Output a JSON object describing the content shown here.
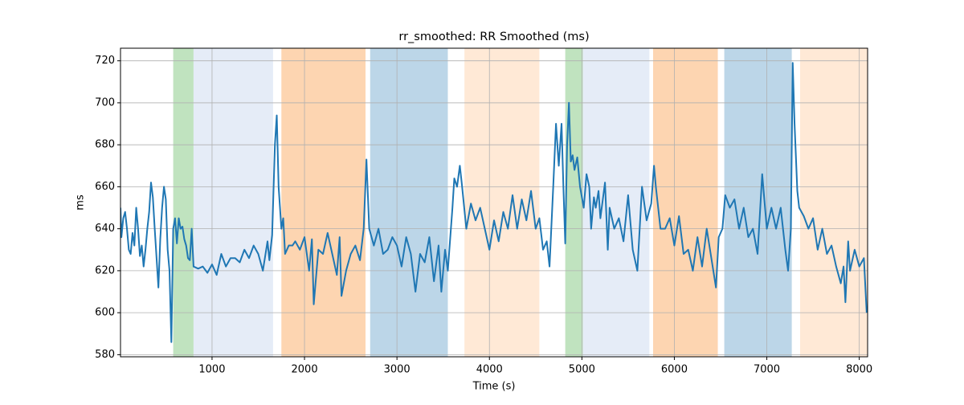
{
  "chart_data": {
    "type": "line",
    "title": "rr_smoothed: RR Smoothed (ms)",
    "x_label": "Time (s)",
    "y_label": "ms",
    "xlim": [
      10,
      8090
    ],
    "ylim": [
      579,
      726
    ],
    "xticks": [
      1000,
      2000,
      3000,
      4000,
      5000,
      6000,
      7000,
      8000
    ],
    "yticks": [
      580,
      600,
      620,
      640,
      660,
      680,
      700,
      720
    ],
    "grid": true,
    "spans": [
      {
        "start": 580,
        "end": 800,
        "color": "#c0e3bf"
      },
      {
        "start": 800,
        "end": 1660,
        "color": "#e5ecf7"
      },
      {
        "start": 1750,
        "end": 2660,
        "color": "#fdd5b1"
      },
      {
        "start": 2710,
        "end": 3550,
        "color": "#bcd6e8"
      },
      {
        "start": 3730,
        "end": 4540,
        "color": "#ffe9d6"
      },
      {
        "start": 4820,
        "end": 5010,
        "color": "#c0e3bf"
      },
      {
        "start": 5010,
        "end": 5730,
        "color": "#e5ecf7"
      },
      {
        "start": 5770,
        "end": 6470,
        "color": "#fdd5b1"
      },
      {
        "start": 6540,
        "end": 7270,
        "color": "#bcd6e8"
      },
      {
        "start": 7360,
        "end": 8090,
        "color": "#ffe9d6"
      }
    ],
    "x": [
      10,
      20,
      40,
      60,
      80,
      100,
      120,
      140,
      160,
      180,
      200,
      220,
      240,
      260,
      280,
      300,
      320,
      340,
      360,
      380,
      400,
      420,
      440,
      460,
      480,
      500,
      520,
      540,
      560,
      580,
      600,
      620,
      640,
      660,
      680,
      700,
      720,
      740,
      760,
      780,
      800,
      850,
      900,
      950,
      1000,
      1050,
      1100,
      1150,
      1200,
      1250,
      1300,
      1350,
      1400,
      1450,
      1500,
      1550,
      1600,
      1620,
      1650,
      1680,
      1700,
      1720,
      1750,
      1770,
      1790,
      1830,
      1870,
      1900,
      1950,
      2000,
      2050,
      2080,
      2100,
      2150,
      2200,
      2250,
      2300,
      2350,
      2380,
      2400,
      2450,
      2500,
      2550,
      2600,
      2640,
      2670,
      2700,
      2750,
      2800,
      2850,
      2900,
      2950,
      3000,
      3050,
      3100,
      3150,
      3200,
      3250,
      3300,
      3350,
      3400,
      3450,
      3480,
      3520,
      3550,
      3600,
      3620,
      3650,
      3680,
      3700,
      3750,
      3800,
      3850,
      3900,
      3950,
      4000,
      4050,
      4100,
      4150,
      4200,
      4250,
      4300,
      4350,
      4400,
      4450,
      4500,
      4540,
      4580,
      4620,
      4650,
      4690,
      4720,
      4750,
      4780,
      4800,
      4820,
      4840,
      4860,
      4880,
      4900,
      4920,
      4950,
      4980,
      5020,
      5050,
      5080,
      5100,
      5130,
      5150,
      5180,
      5200,
      5250,
      5280,
      5300,
      5350,
      5400,
      5450,
      5500,
      5550,
      5600,
      5650,
      5700,
      5750,
      5780,
      5800,
      5850,
      5900,
      5950,
      6000,
      6050,
      6100,
      6150,
      6200,
      6250,
      6300,
      6350,
      6400,
      6450,
      6480,
      6520,
      6550,
      6600,
      6650,
      6700,
      6750,
      6800,
      6850,
      6900,
      6950,
      7000,
      7050,
      7100,
      7150,
      7200,
      7230,
      7260,
      7280,
      7300,
      7330,
      7350,
      7400,
      7450,
      7500,
      7550,
      7600,
      7650,
      7700,
      7750,
      7800,
      7830,
      7850,
      7880,
      7900,
      7950,
      8000,
      8050,
      8080
    ],
    "series": [
      {
        "color": "#1f77b4",
        "values": [
          650,
          636,
          645,
          648,
          640,
          630,
          628,
          638,
          632,
          650,
          640,
          627,
          632,
          622,
          630,
          640,
          648,
          662,
          655,
          640,
          626,
          612,
          635,
          650,
          660,
          654,
          630,
          620,
          586,
          640,
          645,
          633,
          645,
          640,
          641,
          635,
          632,
          626,
          625,
          640,
          622,
          621,
          622,
          619,
          623,
          618,
          628,
          622,
          626,
          626,
          624,
          630,
          626,
          632,
          628,
          620,
          634,
          625,
          637,
          680,
          694,
          660,
          640,
          645,
          628,
          632,
          632,
          634,
          630,
          636,
          620,
          635,
          604,
          630,
          628,
          638,
          628,
          618,
          636,
          608,
          620,
          628,
          632,
          625,
          640,
          673,
          640,
          632,
          640,
          628,
          630,
          636,
          632,
          622,
          636,
          628,
          610,
          628,
          624,
          636,
          615,
          632,
          610,
          630,
          620,
          650,
          664,
          660,
          670,
          662,
          640,
          652,
          644,
          650,
          640,
          630,
          644,
          634,
          648,
          640,
          656,
          640,
          654,
          644,
          658,
          640,
          645,
          630,
          634,
          622,
          660,
          690,
          670,
          690,
          660,
          633,
          680,
          700,
          672,
          675,
          668,
          674,
          660,
          650,
          666,
          660,
          640,
          655,
          650,
          658,
          645,
          662,
          630,
          650,
          640,
          645,
          634,
          656,
          630,
          620,
          660,
          644,
          652,
          670,
          660,
          640,
          640,
          645,
          632,
          646,
          628,
          630,
          620,
          636,
          622,
          640,
          626,
          612,
          636,
          640,
          656,
          650,
          654,
          640,
          650,
          636,
          640,
          628,
          666,
          640,
          650,
          640,
          650,
          630,
          620,
          640,
          719,
          690,
          658,
          650,
          646,
          640,
          645,
          630,
          640,
          628,
          632,
          622,
          614,
          622,
          605,
          634,
          620,
          630,
          622,
          626,
          600
        ]
      }
    ]
  }
}
